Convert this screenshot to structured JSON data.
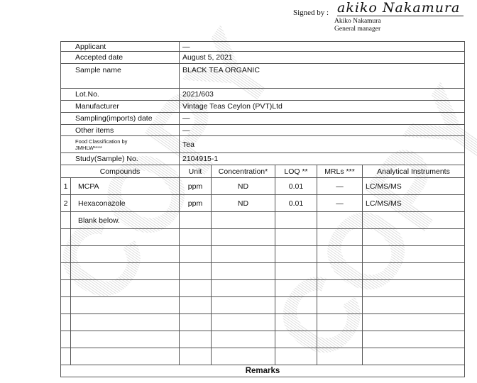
{
  "signature": {
    "label": "Signed by :",
    "handwriting": "akiko Nakamura",
    "name": "Akiko  Nakamura",
    "title": "General manager"
  },
  "info": [
    {
      "label": "Applicant",
      "value": "—"
    },
    {
      "label": "Accepted date",
      "value": "August 5, 2021"
    },
    {
      "label": "Sample name",
      "value": "BLACK TEA ORGANIC"
    },
    {
      "label": "Lot.No.",
      "value": "2021/603"
    },
    {
      "label": "Manufacturer",
      "value": "Vintage Teas Ceylon (PVT)Ltd"
    },
    {
      "label": "Sampling(imports) date",
      "value": "—"
    },
    {
      "label": "Other items",
      "value": "—"
    },
    {
      "label": "Food Classification by JMHLW****",
      "value": "Tea"
    },
    {
      "label": "Study(Sample) No.",
      "value": "2104915-1"
    }
  ],
  "results": {
    "headers": [
      "Compounds",
      "Unit",
      "Concentration*",
      "LOQ **",
      "MRLs ***",
      "Analytical Instruments"
    ],
    "rows": [
      {
        "no": "1",
        "compound": "MCPA",
        "unit": "ppm",
        "concentration": "ND",
        "loq": "0.01",
        "mrl": "—",
        "instrument": "LC/MS/MS"
      },
      {
        "no": "2",
        "compound": "Hexaconazole",
        "unit": "ppm",
        "concentration": "ND",
        "loq": "0.01",
        "mrl": "—",
        "instrument": "LC/MS/MS"
      }
    ],
    "blank_note": "Blank below."
  },
  "remarks_label": "Remarks",
  "watermark": "COPY"
}
